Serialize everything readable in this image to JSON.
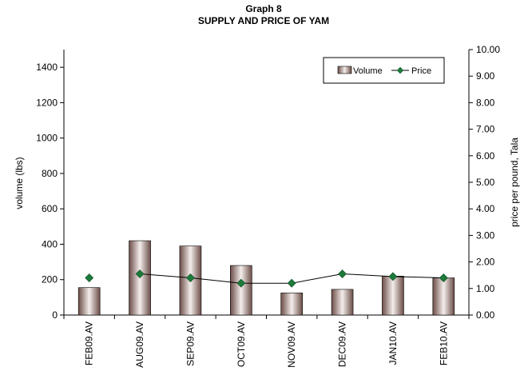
{
  "chart_data": {
    "type": "bar",
    "title": "Graph 8",
    "subtitle": "SUPPLY AND PRICE OF YAM",
    "categories": [
      "FEB09.AV",
      "AUG09.AV",
      "SEP09.AV",
      "OCT09.AV",
      "NOV09.AV",
      "DEC09.AV",
      "JAN10.AV",
      "FEB10.AV"
    ],
    "ylabel": "volume (lbs)",
    "y2label": "price per pound, Tala",
    "ylim": [
      0,
      1500
    ],
    "yticks": [
      "0",
      "200",
      "400",
      "600",
      "800",
      "1000",
      "1200",
      "1400"
    ],
    "y2lim": [
      0,
      10
    ],
    "y2ticks": [
      "0.00",
      "1.00",
      "2.00",
      "3.00",
      "4.00",
      "5.00",
      "6.00",
      "7.00",
      "8.00",
      "9.00",
      "10.00"
    ],
    "grid": false,
    "legend_position": "top-right",
    "series": [
      {
        "name": "Volume",
        "type": "bar",
        "axis": "left",
        "color": "#8a6f6a",
        "values": [
          155,
          420,
          390,
          280,
          125,
          145,
          220,
          210
        ]
      },
      {
        "name": "Price",
        "type": "line",
        "axis": "right",
        "color": "#1d7a3a",
        "values": [
          1.4,
          1.55,
          1.4,
          1.2,
          1.2,
          1.55,
          1.45,
          1.4
        ]
      }
    ]
  }
}
